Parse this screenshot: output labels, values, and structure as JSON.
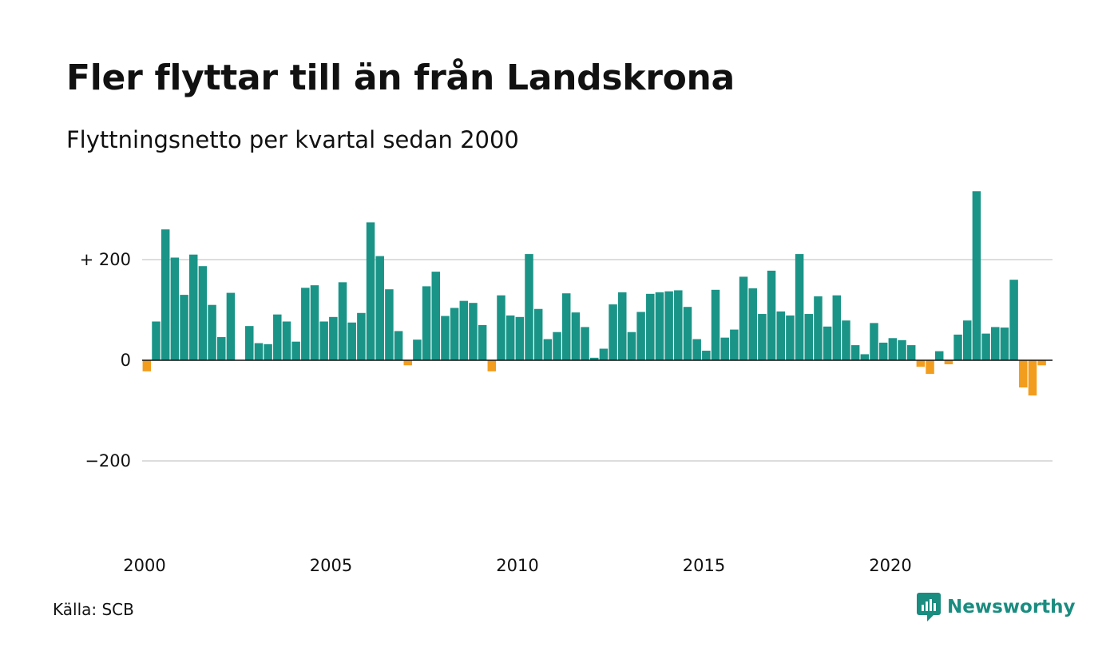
{
  "title": "Fler flyttar till än från Landskrona",
  "subtitle": "Flyttningsnetto per kvartal sedan 2000",
  "source": "Källa: SCB",
  "brand": "Newsworthy",
  "colors": {
    "positive": "#1a9487",
    "negative": "#f29d1e",
    "grid": "#dddddd",
    "zero_line": "#111111",
    "brand": "#1a8c80"
  },
  "chart_data": {
    "type": "bar",
    "title": "Fler flyttar till än från Landskrona",
    "subtitle": "Flyttningsnetto per kvartal sedan 2000",
    "start_year": 2000,
    "periods_per_year": 4,
    "ylim": [
      -400,
      350
    ],
    "y_ticks": [
      {
        "value": 200,
        "label": "+ 200"
      },
      {
        "value": 0,
        "label": "0"
      },
      {
        "value": -200,
        "label": "−200"
      }
    ],
    "x_ticks": [
      "2000",
      "2005",
      "2010",
      "2015",
      "2020"
    ],
    "grid": true,
    "values": [
      -22,
      77,
      260,
      204,
      130,
      210,
      187,
      110,
      46,
      134,
      0,
      68,
      34,
      32,
      91,
      77,
      37,
      144,
      149,
      77,
      86,
      155,
      75,
      94,
      274,
      207,
      141,
      58,
      -10,
      41,
      147,
      176,
      88,
      104,
      118,
      114,
      70,
      -22,
      129,
      89,
      86,
      211,
      102,
      42,
      56,
      133,
      95,
      66,
      5,
      23,
      111,
      135,
      56,
      96,
      132,
      135,
      137,
      139,
      106,
      42,
      19,
      140,
      45,
      61,
      166,
      143,
      92,
      178,
      97,
      89,
      211,
      92,
      127,
      67,
      129,
      79,
      30,
      12,
      74,
      35,
      44,
      40,
      30,
      -13,
      -27,
      18,
      -8,
      51,
      79,
      336,
      53,
      66,
      65,
      160,
      -54,
      -70,
      -10
    ]
  }
}
